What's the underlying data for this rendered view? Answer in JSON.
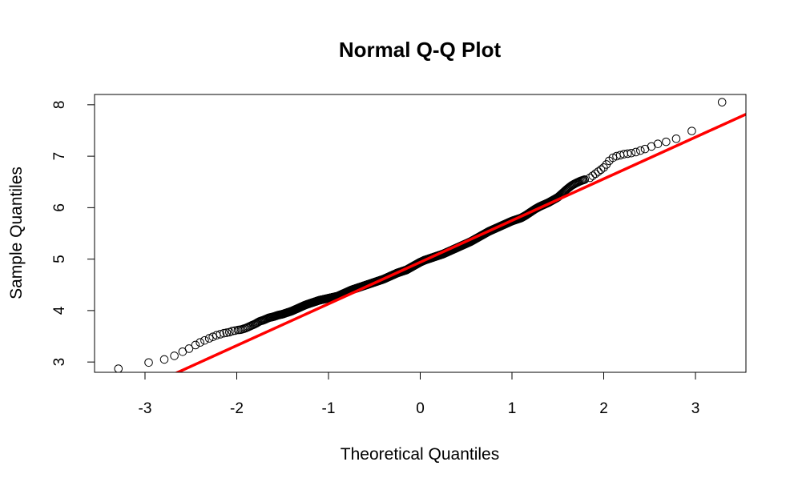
{
  "chart_data": {
    "type": "scatter",
    "title": "Normal Q-Q Plot",
    "xlabel": "Theoretical Quantiles",
    "ylabel": "Sample Quantiles",
    "xlim": [
      -3.55,
      3.55
    ],
    "ylim": [
      2.8,
      8.2
    ],
    "x_ticks": [
      -3,
      -2,
      -1,
      0,
      1,
      2,
      3
    ],
    "x_tick_labels": [
      "-3",
      "-2",
      "-1",
      "0",
      "1",
      "2",
      "3"
    ],
    "y_ticks": [
      3,
      4,
      5,
      6,
      7,
      8
    ],
    "y_tick_labels": [
      "3",
      "4",
      "5",
      "6",
      "7",
      "8"
    ],
    "grid": false,
    "sample_size": 1000,
    "reference_line": {
      "intercept": 4.94,
      "slope": 0.81,
      "color": "#ff0000"
    },
    "marker_color": "#000000",
    "tail_points": [
      {
        "x": -3.29,
        "y": 2.87
      },
      {
        "x": -2.96,
        "y": 2.99
      },
      {
        "x": -2.79,
        "y": 3.05
      },
      {
        "x": -2.68,
        "y": 3.12
      },
      {
        "x": -2.59,
        "y": 3.2
      },
      {
        "x": -2.52,
        "y": 3.26
      },
      {
        "x": -2.45,
        "y": 3.33
      },
      {
        "x": -2.4,
        "y": 3.38
      },
      {
        "x": -2.35,
        "y": 3.42
      },
      {
        "x": -2.3,
        "y": 3.46
      },
      {
        "x": -2.26,
        "y": 3.49
      },
      {
        "x": -2.22,
        "y": 3.52
      },
      {
        "x": -2.18,
        "y": 3.54
      },
      {
        "x": -2.14,
        "y": 3.56
      },
      {
        "x": -2.11,
        "y": 3.57
      },
      {
        "x": -2.08,
        "y": 3.58
      },
      {
        "x": -2.05,
        "y": 3.6
      },
      {
        "x": -2.02,
        "y": 3.61
      },
      {
        "x": 1.85,
        "y": 6.58
      },
      {
        "x": 1.88,
        "y": 6.62
      },
      {
        "x": 1.91,
        "y": 6.66
      },
      {
        "x": 1.94,
        "y": 6.7
      },
      {
        "x": 1.97,
        "y": 6.74
      },
      {
        "x": 2.0,
        "y": 6.78
      },
      {
        "x": 2.03,
        "y": 6.84
      },
      {
        "x": 2.06,
        "y": 6.91
      },
      {
        "x": 2.1,
        "y": 6.97
      },
      {
        "x": 2.14,
        "y": 7.0
      },
      {
        "x": 2.18,
        "y": 7.02
      },
      {
        "x": 2.22,
        "y": 7.04
      },
      {
        "x": 2.26,
        "y": 7.05
      },
      {
        "x": 2.3,
        "y": 7.06
      },
      {
        "x": 2.35,
        "y": 7.08
      },
      {
        "x": 2.4,
        "y": 7.11
      },
      {
        "x": 2.45,
        "y": 7.14
      },
      {
        "x": 2.52,
        "y": 7.19
      },
      {
        "x": 2.59,
        "y": 7.24
      },
      {
        "x": 2.68,
        "y": 7.28
      },
      {
        "x": 2.79,
        "y": 7.34
      },
      {
        "x": 2.96,
        "y": 7.49
      },
      {
        "x": 3.29,
        "y": 8.05
      }
    ],
    "body_points": [
      {
        "x": -2.0,
        "y": 3.62
      },
      {
        "x": -1.95,
        "y": 3.63
      },
      {
        "x": -1.9,
        "y": 3.66
      },
      {
        "x": -1.85,
        "y": 3.7
      },
      {
        "x": -1.8,
        "y": 3.74
      },
      {
        "x": -1.75,
        "y": 3.79
      },
      {
        "x": -1.7,
        "y": 3.82
      },
      {
        "x": -1.65,
        "y": 3.86
      },
      {
        "x": -1.6,
        "y": 3.88
      },
      {
        "x": -1.55,
        "y": 3.91
      },
      {
        "x": -1.5,
        "y": 3.93
      },
      {
        "x": -1.45,
        "y": 3.96
      },
      {
        "x": -1.4,
        "y": 3.99
      },
      {
        "x": -1.35,
        "y": 4.03
      },
      {
        "x": -1.3,
        "y": 4.07
      },
      {
        "x": -1.25,
        "y": 4.11
      },
      {
        "x": -1.2,
        "y": 4.14
      },
      {
        "x": -1.15,
        "y": 4.17
      },
      {
        "x": -1.1,
        "y": 4.2
      },
      {
        "x": -1.05,
        "y": 4.22
      },
      {
        "x": -1.0,
        "y": 4.24
      },
      {
        "x": -0.95,
        "y": 4.26
      },
      {
        "x": -0.9,
        "y": 4.28
      },
      {
        "x": -0.85,
        "y": 4.32
      },
      {
        "x": -0.8,
        "y": 4.36
      },
      {
        "x": -0.75,
        "y": 4.4
      },
      {
        "x": -0.7,
        "y": 4.43
      },
      {
        "x": -0.65,
        "y": 4.46
      },
      {
        "x": -0.6,
        "y": 4.49
      },
      {
        "x": -0.55,
        "y": 4.52
      },
      {
        "x": -0.5,
        "y": 4.55
      },
      {
        "x": -0.45,
        "y": 4.58
      },
      {
        "x": -0.4,
        "y": 4.61
      },
      {
        "x": -0.35,
        "y": 4.65
      },
      {
        "x": -0.3,
        "y": 4.69
      },
      {
        "x": -0.25,
        "y": 4.73
      },
      {
        "x": -0.2,
        "y": 4.76
      },
      {
        "x": -0.15,
        "y": 4.79
      },
      {
        "x": -0.1,
        "y": 4.84
      },
      {
        "x": -0.05,
        "y": 4.89
      },
      {
        "x": 0.0,
        "y": 4.94
      },
      {
        "x": 0.05,
        "y": 4.98
      },
      {
        "x": 0.1,
        "y": 5.01
      },
      {
        "x": 0.15,
        "y": 5.04
      },
      {
        "x": 0.2,
        "y": 5.07
      },
      {
        "x": 0.25,
        "y": 5.1
      },
      {
        "x": 0.3,
        "y": 5.14
      },
      {
        "x": 0.35,
        "y": 5.18
      },
      {
        "x": 0.4,
        "y": 5.22
      },
      {
        "x": 0.45,
        "y": 5.26
      },
      {
        "x": 0.5,
        "y": 5.3
      },
      {
        "x": 0.55,
        "y": 5.34
      },
      {
        "x": 0.6,
        "y": 5.39
      },
      {
        "x": 0.65,
        "y": 5.44
      },
      {
        "x": 0.7,
        "y": 5.49
      },
      {
        "x": 0.75,
        "y": 5.54
      },
      {
        "x": 0.8,
        "y": 5.58
      },
      {
        "x": 0.85,
        "y": 5.62
      },
      {
        "x": 0.9,
        "y": 5.66
      },
      {
        "x": 0.95,
        "y": 5.7
      },
      {
        "x": 1.0,
        "y": 5.74
      },
      {
        "x": 1.05,
        "y": 5.77
      },
      {
        "x": 1.1,
        "y": 5.8
      },
      {
        "x": 1.15,
        "y": 5.85
      },
      {
        "x": 1.2,
        "y": 5.91
      },
      {
        "x": 1.25,
        "y": 5.97
      },
      {
        "x": 1.3,
        "y": 6.02
      },
      {
        "x": 1.35,
        "y": 6.06
      },
      {
        "x": 1.4,
        "y": 6.1
      },
      {
        "x": 1.45,
        "y": 6.15
      },
      {
        "x": 1.5,
        "y": 6.2
      },
      {
        "x": 1.55,
        "y": 6.28
      },
      {
        "x": 1.6,
        "y": 6.36
      },
      {
        "x": 1.65,
        "y": 6.43
      },
      {
        "x": 1.7,
        "y": 6.48
      },
      {
        "x": 1.75,
        "y": 6.52
      },
      {
        "x": 1.8,
        "y": 6.55
      }
    ]
  }
}
